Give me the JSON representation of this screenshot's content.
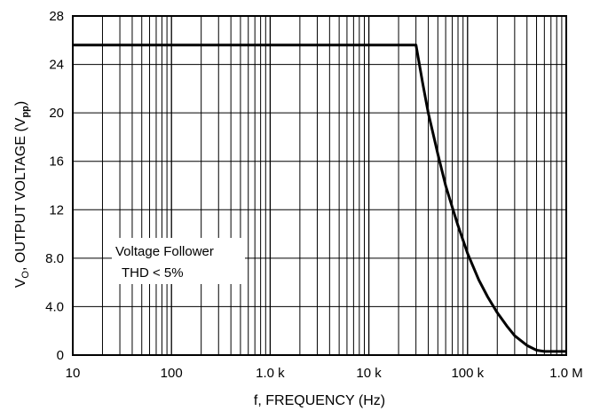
{
  "chart_data": {
    "type": "line",
    "xscale": "log",
    "xlim": [
      10,
      1000000
    ],
    "ylim": [
      0,
      28
    ],
    "grid": true,
    "xlabel": "f, FREQUENCY (Hz)",
    "ylabel_main": "V",
    "ylabel_sub1": "O",
    "ylabel_mid": ", OUTPUT VOLTAGE (V",
    "ylabel_sub2": "pp",
    "ylabel_end": ")",
    "x_ticks": [
      {
        "value": 10,
        "label": "10"
      },
      {
        "value": 100,
        "label": "100"
      },
      {
        "value": 1000,
        "label": "1.0 k"
      },
      {
        "value": 10000,
        "label": "10 k"
      },
      {
        "value": 100000,
        "label": "100 k"
      },
      {
        "value": 1000000,
        "label": "1.0 M"
      }
    ],
    "y_ticks": [
      {
        "value": 0,
        "label": "0"
      },
      {
        "value": 4,
        "label": "4.0"
      },
      {
        "value": 8,
        "label": "8.0"
      },
      {
        "value": 12,
        "label": "12"
      },
      {
        "value": 16,
        "label": "16"
      },
      {
        "value": 20,
        "label": "20"
      },
      {
        "value": 24,
        "label": "24"
      },
      {
        "value": 28,
        "label": "28"
      }
    ],
    "annotation": [
      "Voltage Follower",
      "THD < 5%"
    ],
    "series": [
      {
        "x": [
          10,
          1000,
          10000,
          30000,
          35000,
          40000,
          50000,
          60000,
          70000,
          80000,
          100000,
          130000,
          160000,
          200000,
          250000,
          300000,
          400000,
          500000,
          600000,
          1000000
        ],
        "y": [
          25.6,
          25.6,
          25.6,
          25.6,
          22.5,
          20.0,
          16.6,
          14.0,
          12.2,
          10.7,
          8.4,
          6.2,
          4.8,
          3.5,
          2.4,
          1.6,
          0.8,
          0.4,
          0.3,
          0.3
        ],
        "color": "#000000"
      }
    ]
  }
}
